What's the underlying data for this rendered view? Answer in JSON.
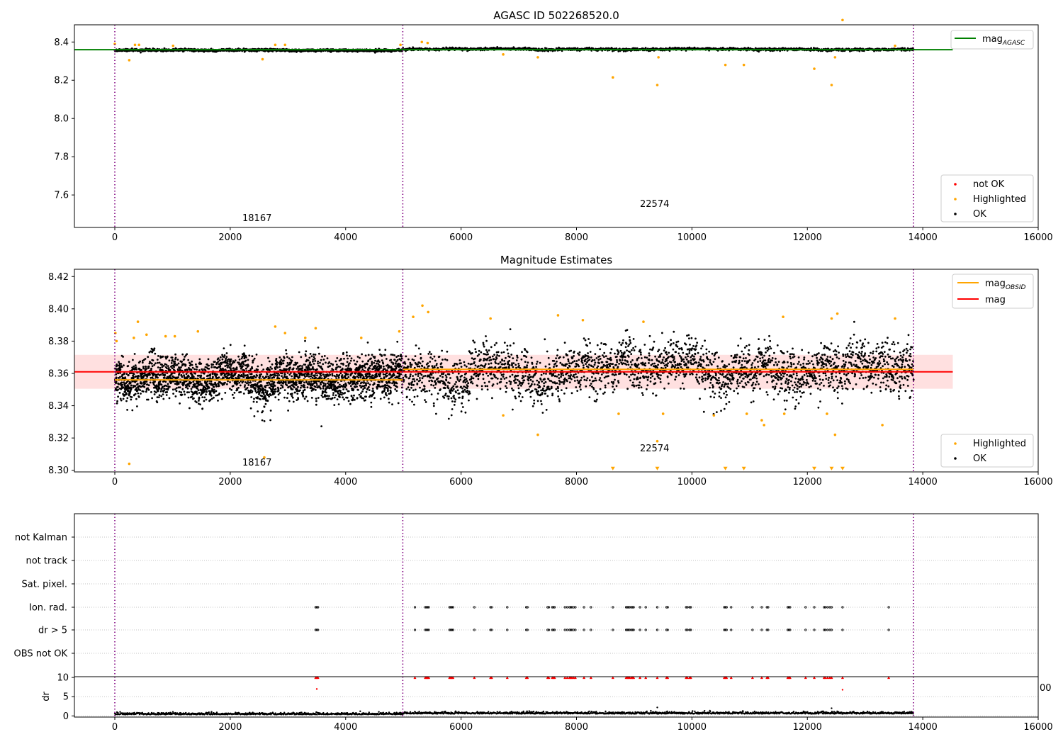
{
  "chart_data": [
    {
      "type": "scatter",
      "title": "AGASC ID 502268520.0",
      "xlim": [
        -700,
        16000
      ],
      "ylim": [
        7.43,
        8.49
      ],
      "xticks": [
        0,
        2000,
        4000,
        6000,
        8000,
        10000,
        12000,
        14000,
        16000
      ],
      "yticks": [
        7.6,
        7.8,
        8.0,
        8.2,
        8.4
      ],
      "yticklabels": [
        "7.6",
        "7.8",
        "8.0",
        "8.2",
        "8.4"
      ],
      "vlines": [
        0,
        4990,
        13840
      ],
      "obsids": [
        {
          "label": "18167",
          "x": 2480,
          "y": 7.46
        },
        {
          "label": "22574",
          "x": 9350,
          "y": 7.535
        }
      ],
      "hline": {
        "name": "mag_AGASC",
        "value": 8.36,
        "x0": -700,
        "x1": 14520,
        "color": "#008000"
      },
      "series": [
        {
          "name": "not OK",
          "color": "#ff0000",
          "points": []
        },
        {
          "name": "Highlighted",
          "color": "#ffa500",
          "points": [
            [
              0,
              8.39
            ],
            [
              250,
              8.305
            ],
            [
              350,
              8.385
            ],
            [
              420,
              8.385
            ],
            [
              1010,
              8.38
            ],
            [
              2560,
              8.31
            ],
            [
              2780,
              8.385
            ],
            [
              2950,
              8.385
            ],
            [
              4950,
              8.385
            ],
            [
              5320,
              8.4
            ],
            [
              5420,
              8.395
            ],
            [
              6730,
              8.335
            ],
            [
              7330,
              8.32
            ],
            [
              8630,
              8.215
            ],
            [
              9400,
              8.175
            ],
            [
              9420,
              8.32
            ],
            [
              10580,
              8.28
            ],
            [
              10900,
              8.28
            ],
            [
              12120,
              8.26
            ],
            [
              12420,
              8.175
            ],
            [
              12480,
              8.32
            ],
            [
              12610,
              8.515
            ],
            [
              13520,
              8.38
            ]
          ]
        },
        {
          "name": "OK",
          "color": "#000000",
          "segments": [
            {
              "x0": 0,
              "x1": 4980,
              "mean": 8.357,
              "sd": 0.009
            },
            {
              "x0": 4990,
              "x1": 13840,
              "mean": 8.362,
              "sd": 0.01
            }
          ]
        }
      ],
      "legend": [
        {
          "position": "top-right",
          "entries": [
            "mag_AGASC"
          ]
        },
        {
          "position": "lower-right",
          "entries": [
            "not OK",
            "Highlighted",
            "OK"
          ]
        }
      ]
    },
    {
      "type": "scatter",
      "title": "Magnitude Estimates",
      "xlim": [
        -700,
        16000
      ],
      "ylim": [
        8.299,
        8.4245
      ],
      "xticks": [
        0,
        2000,
        4000,
        6000,
        8000,
        10000,
        12000,
        14000,
        16000
      ],
      "yticks": [
        8.3,
        8.32,
        8.34,
        8.36,
        8.38,
        8.4,
        8.42
      ],
      "yticklabels": [
        "8.30",
        "8.32",
        "8.34",
        "8.36",
        "8.38",
        "8.40",
        "8.42"
      ],
      "vlines": [
        0,
        4990,
        13840
      ],
      "obsids": [
        {
          "label": "18167",
          "x": 2480,
          "y": 8.3025
        },
        {
          "label": "22574",
          "x": 9350,
          "y": 8.3115
        }
      ],
      "mag": {
        "name": "mag",
        "value": 8.361,
        "band": [
          8.3505,
          8.3715
        ],
        "x0": -700,
        "x1": 14520,
        "color": "#ff0000"
      },
      "mag_obsid": [
        {
          "x0": 0,
          "x1": 4990,
          "value": 8.356
        },
        {
          "x0": 4990,
          "x1": 13840,
          "value": 8.3625
        }
      ],
      "series": [
        {
          "name": "Highlighted",
          "color": "#ffa500",
          "points": [
            [
              10,
              8.385
            ],
            [
              30,
              8.38
            ],
            [
              250,
              8.304
            ],
            [
              330,
              8.382
            ],
            [
              400,
              8.392
            ],
            [
              550,
              8.384
            ],
            [
              880,
              8.383
            ],
            [
              1040,
              8.383
            ],
            [
              1440,
              8.386
            ],
            [
              2590,
              8.308
            ],
            [
              2780,
              8.389
            ],
            [
              2950,
              8.385
            ],
            [
              3300,
              8.382
            ],
            [
              3480,
              8.388
            ],
            [
              4270,
              8.382
            ],
            [
              4930,
              8.386
            ],
            [
              5170,
              8.395
            ],
            [
              5330,
              8.402
            ],
            [
              5430,
              8.398
            ],
            [
              6510,
              8.394
            ],
            [
              6730,
              8.334
            ],
            [
              7330,
              8.322
            ],
            [
              7680,
              8.396
            ],
            [
              8110,
              8.393
            ],
            [
              8730,
              8.335
            ],
            [
              9160,
              8.392
            ],
            [
              9400,
              8.318
            ],
            [
              9500,
              8.335
            ],
            [
              10380,
              8.334
            ],
            [
              10950,
              8.335
            ],
            [
              11210,
              8.331
            ],
            [
              11250,
              8.328
            ],
            [
              11580,
              8.395
            ],
            [
              11600,
              8.335
            ],
            [
              12340,
              8.335
            ],
            [
              12420,
              8.394
            ],
            [
              12480,
              8.322
            ],
            [
              12520,
              8.397
            ],
            [
              13300,
              8.328
            ],
            [
              13520,
              8.394
            ]
          ]
        },
        {
          "name": "Highlighted (below range)",
          "color": "#ffa500",
          "points": [
            [
              8630,
              8.3
            ],
            [
              9400,
              8.3
            ],
            [
              10580,
              8.3
            ],
            [
              10900,
              8.3
            ],
            [
              12120,
              8.3
            ],
            [
              12420,
              8.3
            ],
            [
              12610,
              8.3
            ]
          ]
        },
        {
          "name": "OK",
          "color": "#000000",
          "segments": [
            {
              "x0": 0,
              "x1": 4980,
              "mean": 8.357,
              "sd": 0.009
            },
            {
              "x0": 4990,
              "x1": 13840,
              "mean": 8.362,
              "sd": 0.01
            }
          ]
        }
      ],
      "legend": [
        {
          "position": "top-right",
          "entries": [
            "mag_OBSID",
            "mag"
          ]
        },
        {
          "position": "lower-right",
          "entries": [
            "Highlighted",
            "OK"
          ]
        }
      ]
    },
    {
      "type": "scatter",
      "xlim": [
        -700,
        16000
      ],
      "categories": [
        "not Kalman",
        "not track",
        "Sat. pixel.",
        "Ion. rad.",
        "dr > 5",
        "OBS not OK"
      ],
      "flag_x": [
        3480,
        3500,
        3520,
        5200,
        5380,
        5400,
        5420,
        5440,
        5800,
        5820,
        5840,
        5860,
        6230,
        6510,
        6530,
        6800,
        7130,
        7150,
        7500,
        7520,
        7580,
        7600,
        7620,
        7800,
        7840,
        7880,
        7900,
        7920,
        7950,
        7980,
        8130,
        8250,
        8630,
        8860,
        8880,
        8900,
        8920,
        8950,
        8970,
        8990,
        9100,
        9200,
        9400,
        9560,
        9580,
        9900,
        9920,
        9960,
        9980,
        10560,
        10580,
        10600,
        10680,
        11050,
        11210,
        11300,
        11320,
        11660,
        11680,
        11700,
        11970,
        12120,
        12290,
        12310,
        12350,
        12390,
        12420,
        12610,
        13410
      ],
      "vlines": [
        0,
        4990,
        13840
      ]
    },
    {
      "type": "scatter",
      "xlim": [
        -700,
        16000
      ],
      "ylim": [
        -0.3,
        10.2
      ],
      "ylabel": "dr",
      "yticks": [
        0,
        5,
        10
      ],
      "yticklabels": [
        "0",
        "5",
        "10"
      ],
      "xticks": [
        0,
        2000,
        4000,
        6000,
        8000,
        10000,
        12000,
        14000,
        16000
      ],
      "vlines": [
        0,
        4990,
        13840
      ],
      "series": [
        {
          "name": "not OK",
          "color": "#ff0000",
          "points": [
            [
              3500,
              7.0
            ],
            [
              12610,
              6.8
            ]
          ]
        },
        {
          "name": "OK",
          "color": "#000000",
          "points": [
            [
              9400,
              2.2
            ],
            [
              12420,
              2.0
            ],
            [
              12520,
              1.0
            ],
            [
              13100,
              0.8
            ],
            [
              13800,
              1.1
            ]
          ]
        }
      ],
      "stray_ticklabel": "00"
    }
  ]
}
